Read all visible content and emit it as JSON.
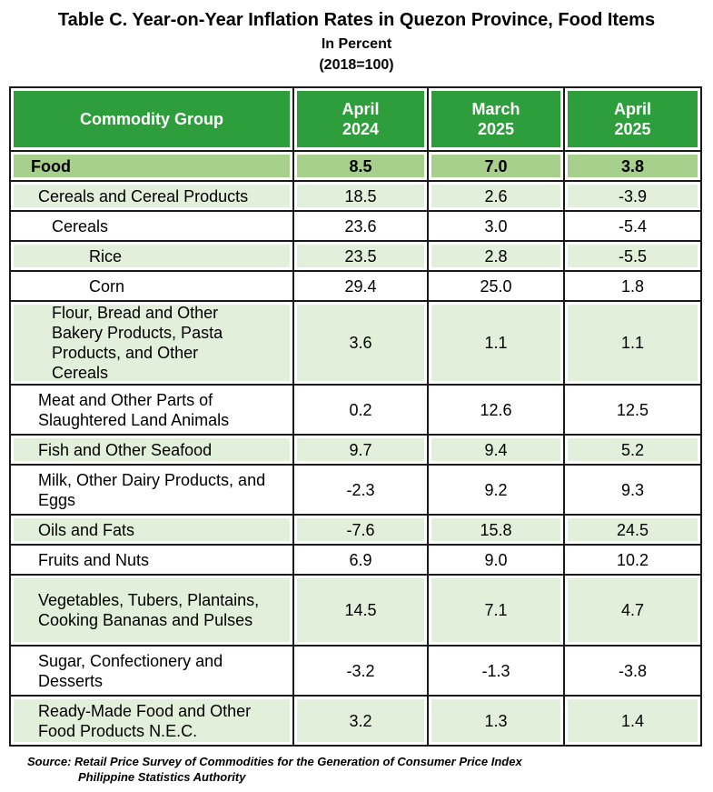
{
  "title": "Table C. Year-on-Year Inflation Rates in Quezon Province, Food Items",
  "subtitle_unit": "In Percent",
  "subtitle_base": "(2018=100)",
  "header": {
    "commodity": "Commodity Group",
    "col1_line1": "April",
    "col1_line2": "2024",
    "col2_line1": "March",
    "col2_line2": "2025",
    "col3_line1": "April",
    "col3_line2": "2025"
  },
  "rows": [
    {
      "label": "Food",
      "apr2024": "8.5",
      "mar2025": "7.0",
      "apr2025": "3.8"
    },
    {
      "label": "Cereals and Cereal Products",
      "apr2024": "18.5",
      "mar2025": "2.6",
      "apr2025": "-3.9"
    },
    {
      "label": "Cereals",
      "apr2024": "23.6",
      "mar2025": "3.0",
      "apr2025": "-5.4"
    },
    {
      "label": "Rice",
      "apr2024": "23.5",
      "mar2025": "2.8",
      "apr2025": "-5.5"
    },
    {
      "label": "Corn",
      "apr2024": "29.4",
      "mar2025": "25.0",
      "apr2025": "1.8"
    },
    {
      "label": "Flour, Bread and Other Bakery Products, Pasta Products, and Other Cereals",
      "apr2024": "3.6",
      "mar2025": "1.1",
      "apr2025": "1.1"
    },
    {
      "label": "Meat and Other Parts of Slaughtered Land Animals",
      "apr2024": "0.2",
      "mar2025": "12.6",
      "apr2025": "12.5"
    },
    {
      "label": "Fish and Other Seafood",
      "apr2024": "9.7",
      "mar2025": "9.4",
      "apr2025": "5.2"
    },
    {
      "label": "Milk, Other Dairy Products, and Eggs",
      "apr2024": "-2.3",
      "mar2025": "9.2",
      "apr2025": "9.3"
    },
    {
      "label": "Oils and Fats",
      "apr2024": "-7.6",
      "mar2025": "15.8",
      "apr2025": "24.5"
    },
    {
      "label": "Fruits and Nuts",
      "apr2024": "6.9",
      "mar2025": "9.0",
      "apr2025": "10.2"
    },
    {
      "label": "Vegetables, Tubers, Plantains, Cooking Bananas and Pulses",
      "apr2024": "14.5",
      "mar2025": "7.1",
      "apr2025": "4.7"
    },
    {
      "label": "Sugar, Confectionery and Desserts",
      "apr2024": "-3.2",
      "mar2025": "-1.3",
      "apr2025": "-3.8"
    },
    {
      "label": "Ready-Made Food and Other Food Products N.E.C.",
      "apr2024": "3.2",
      "mar2025": "1.3",
      "apr2025": "1.4"
    }
  ],
  "source_line1": "Source: Retail Price Survey of Commodities for the Generation of Consumer Price Index",
  "source_line2": "Philippine Statistics Authority",
  "colors": {
    "header_bg": "#2e9e3c",
    "food_row_bg": "#a8d08d",
    "band_bg": "#e2efda"
  }
}
